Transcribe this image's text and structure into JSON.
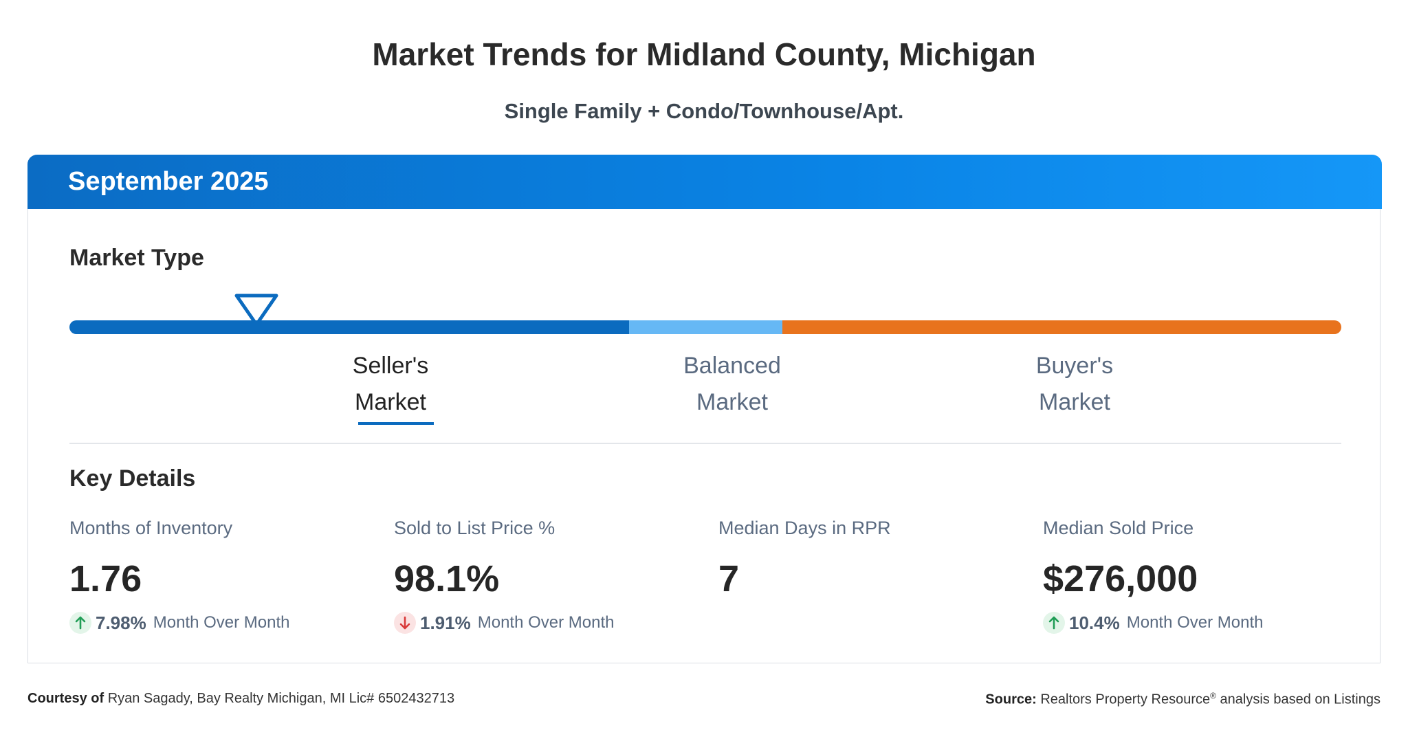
{
  "header": {
    "title": "Market Trends for Midland County, Michigan",
    "subtitle": "Single Family + Condo/Townhouse/Apt."
  },
  "card": {
    "period": "September 2025",
    "market_type": {
      "heading": "Market Type",
      "labels": {
        "seller_line1": "Seller's",
        "seller_line2": "Market",
        "balanced_line1": "Balanced",
        "balanced_line2": "Market",
        "buyer_line1": "Buyer's",
        "buyer_line2": "Market"
      },
      "active": "Seller's Market",
      "colors": {
        "seller": "#0b6bbf",
        "balanced": "#66b8f5",
        "buyer": "#e8731d"
      }
    },
    "key_details": {
      "heading": "Key Details",
      "stats": [
        {
          "label": "Months of Inventory",
          "value": "1.76",
          "change": "7.98%",
          "direction": "up",
          "period_text": "Month Over Month"
        },
        {
          "label": "Sold to List Price %",
          "value": "98.1%",
          "change": "1.91%",
          "direction": "down",
          "period_text": "Month Over Month"
        },
        {
          "label": "Median Days in RPR",
          "value": "7"
        },
        {
          "label": "Median Sold Price",
          "value": "$276,000",
          "change": "10.4%",
          "direction": "up",
          "period_text": "Month Over Month"
        }
      ]
    }
  },
  "footer": {
    "courtesy_label": "Courtesy of",
    "courtesy_text": "Ryan Sagady, Bay Realty Michigan, MI Lic# 6502432713",
    "source_label": "Source:",
    "source_name": "Realtors Property Resource",
    "source_mark": "®",
    "source_rest": "analysis based on Listings"
  },
  "icons": {
    "up_arrow": "arrow-up-icon",
    "down_arrow": "arrow-down-icon",
    "marker": "triangle-marker-icon"
  }
}
